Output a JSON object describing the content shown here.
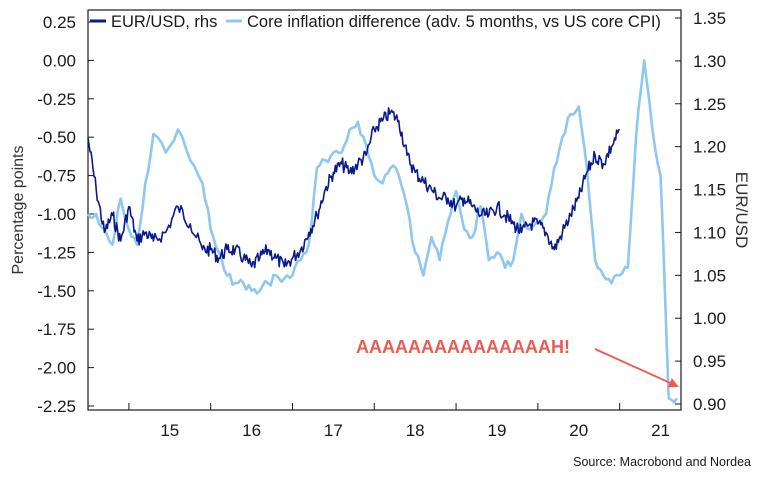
{
  "colors": {
    "eurusd": "#0a1a8c",
    "inflation": "#8ec7f2",
    "annotation": "#ee5a52",
    "axis": "#1a1a1a"
  },
  "chart_data": {
    "type": "line",
    "xlabel": "",
    "ylabel": "Percentage points",
    "ylabel_right": "EUR/USD",
    "ylim": [
      -2.25,
      0.25
    ],
    "ylim_right": [
      0.9,
      1.35
    ],
    "xlim": [
      2014.5,
      2021.75
    ],
    "yticks": [
      "0.25",
      "0.00",
      "-0.25",
      "-0.50",
      "-0.75",
      "-1.00",
      "-1.25",
      "-1.50",
      "-1.75",
      "-2.00",
      "-2.25"
    ],
    "yticks_right": [
      "1.35",
      "1.30",
      "1.25",
      "1.20",
      "1.15",
      "1.10",
      "1.05",
      "1.00",
      "0.95",
      "0.90"
    ],
    "xticks": [
      "15",
      "16",
      "17",
      "18",
      "19",
      "20",
      "21"
    ],
    "legend_position": "top-left",
    "series": [
      {
        "name": "EUR/USD, rhs",
        "axis": "right",
        "x": [
          2014.5,
          2014.6,
          2014.7,
          2014.8,
          2014.9,
          2015.0,
          2015.1,
          2015.2,
          2015.3,
          2015.45,
          2015.6,
          2015.75,
          2015.9,
          2016.0,
          2016.1,
          2016.2,
          2016.3,
          2016.4,
          2016.5,
          2016.6,
          2016.7,
          2016.8,
          2016.9,
          2017.0,
          2017.1,
          2017.2,
          2017.3,
          2017.4,
          2017.5,
          2017.6,
          2017.7,
          2017.8,
          2017.9,
          2018.0,
          2018.1,
          2018.2,
          2018.3,
          2018.4,
          2018.5,
          2018.6,
          2018.7,
          2018.8,
          2018.9,
          2019.0,
          2019.1,
          2019.2,
          2019.3,
          2019.4,
          2019.5,
          2019.6,
          2019.7,
          2019.8,
          2019.9,
          2020.0,
          2020.1,
          2020.2,
          2020.3,
          2020.4,
          2020.5,
          2020.6,
          2020.7,
          2020.8,
          2020.9,
          2021.0
        ],
        "values": [
          1.21,
          1.15,
          1.1,
          1.12,
          1.09,
          1.13,
          1.09,
          1.1,
          1.09,
          1.1,
          1.13,
          1.11,
          1.08,
          1.08,
          1.07,
          1.08,
          1.08,
          1.07,
          1.06,
          1.07,
          1.08,
          1.07,
          1.06,
          1.07,
          1.08,
          1.1,
          1.12,
          1.15,
          1.17,
          1.18,
          1.17,
          1.18,
          1.19,
          1.22,
          1.23,
          1.24,
          1.23,
          1.19,
          1.17,
          1.16,
          1.15,
          1.14,
          1.14,
          1.13,
          1.14,
          1.13,
          1.12,
          1.12,
          1.13,
          1.12,
          1.11,
          1.1,
          1.11,
          1.11,
          1.1,
          1.08,
          1.1,
          1.12,
          1.14,
          1.17,
          1.19,
          1.18,
          1.2,
          1.22
        ]
      },
      {
        "name": "Core inflation difference (adv. 5 months, vs US core CPI)",
        "axis": "left",
        "x": [
          2014.5,
          2014.6,
          2014.7,
          2014.8,
          2014.9,
          2015.0,
          2015.1,
          2015.2,
          2015.3,
          2015.45,
          2015.6,
          2015.75,
          2015.9,
          2016.0,
          2016.1,
          2016.2,
          2016.3,
          2016.4,
          2016.5,
          2016.6,
          2016.7,
          2016.8,
          2016.9,
          2017.0,
          2017.1,
          2017.2,
          2017.3,
          2017.4,
          2017.5,
          2017.6,
          2017.7,
          2017.8,
          2017.9,
          2018.0,
          2018.1,
          2018.2,
          2018.3,
          2018.4,
          2018.5,
          2018.6,
          2018.7,
          2018.8,
          2018.9,
          2019.0,
          2019.1,
          2019.2,
          2019.3,
          2019.4,
          2019.5,
          2019.6,
          2019.7,
          2019.8,
          2019.9,
          2020.0,
          2020.1,
          2020.2,
          2020.3,
          2020.4,
          2020.5,
          2020.6,
          2020.7,
          2020.8,
          2020.9,
          2021.0,
          2021.1,
          2021.2,
          2021.3,
          2021.4,
          2021.5,
          2021.6,
          2021.7
        ],
        "values": [
          -1.0,
          -1.0,
          -1.1,
          -1.2,
          -0.9,
          -1.1,
          -1.2,
          -0.8,
          -0.48,
          -0.6,
          -0.45,
          -0.65,
          -0.8,
          -1.1,
          -1.25,
          -1.4,
          -1.45,
          -1.45,
          -1.5,
          -1.5,
          -1.45,
          -1.4,
          -1.42,
          -1.4,
          -1.3,
          -1.2,
          -0.7,
          -0.65,
          -0.6,
          -0.6,
          -0.45,
          -0.4,
          -0.55,
          -0.75,
          -0.8,
          -0.7,
          -0.75,
          -0.95,
          -1.25,
          -1.4,
          -1.15,
          -1.3,
          -1.05,
          -0.85,
          -1.1,
          -1.15,
          -0.95,
          -1.3,
          -1.25,
          -1.35,
          -1.3,
          -1.0,
          -1.1,
          -1.05,
          -1.0,
          -0.7,
          -0.5,
          -0.35,
          -0.3,
          -0.7,
          -1.3,
          -1.4,
          -1.45,
          -1.4,
          -1.35,
          -0.5,
          0.0,
          -0.45,
          -0.75,
          -2.2,
          -2.2
        ]
      }
    ],
    "annotations": [
      {
        "text": "AAAAAAAAAAAAAAAH!",
        "arrow_to": [
          2021.72,
          -2.15
        ],
        "axis": "left"
      }
    ]
  },
  "source": "Source: Macrobond and Nordea"
}
